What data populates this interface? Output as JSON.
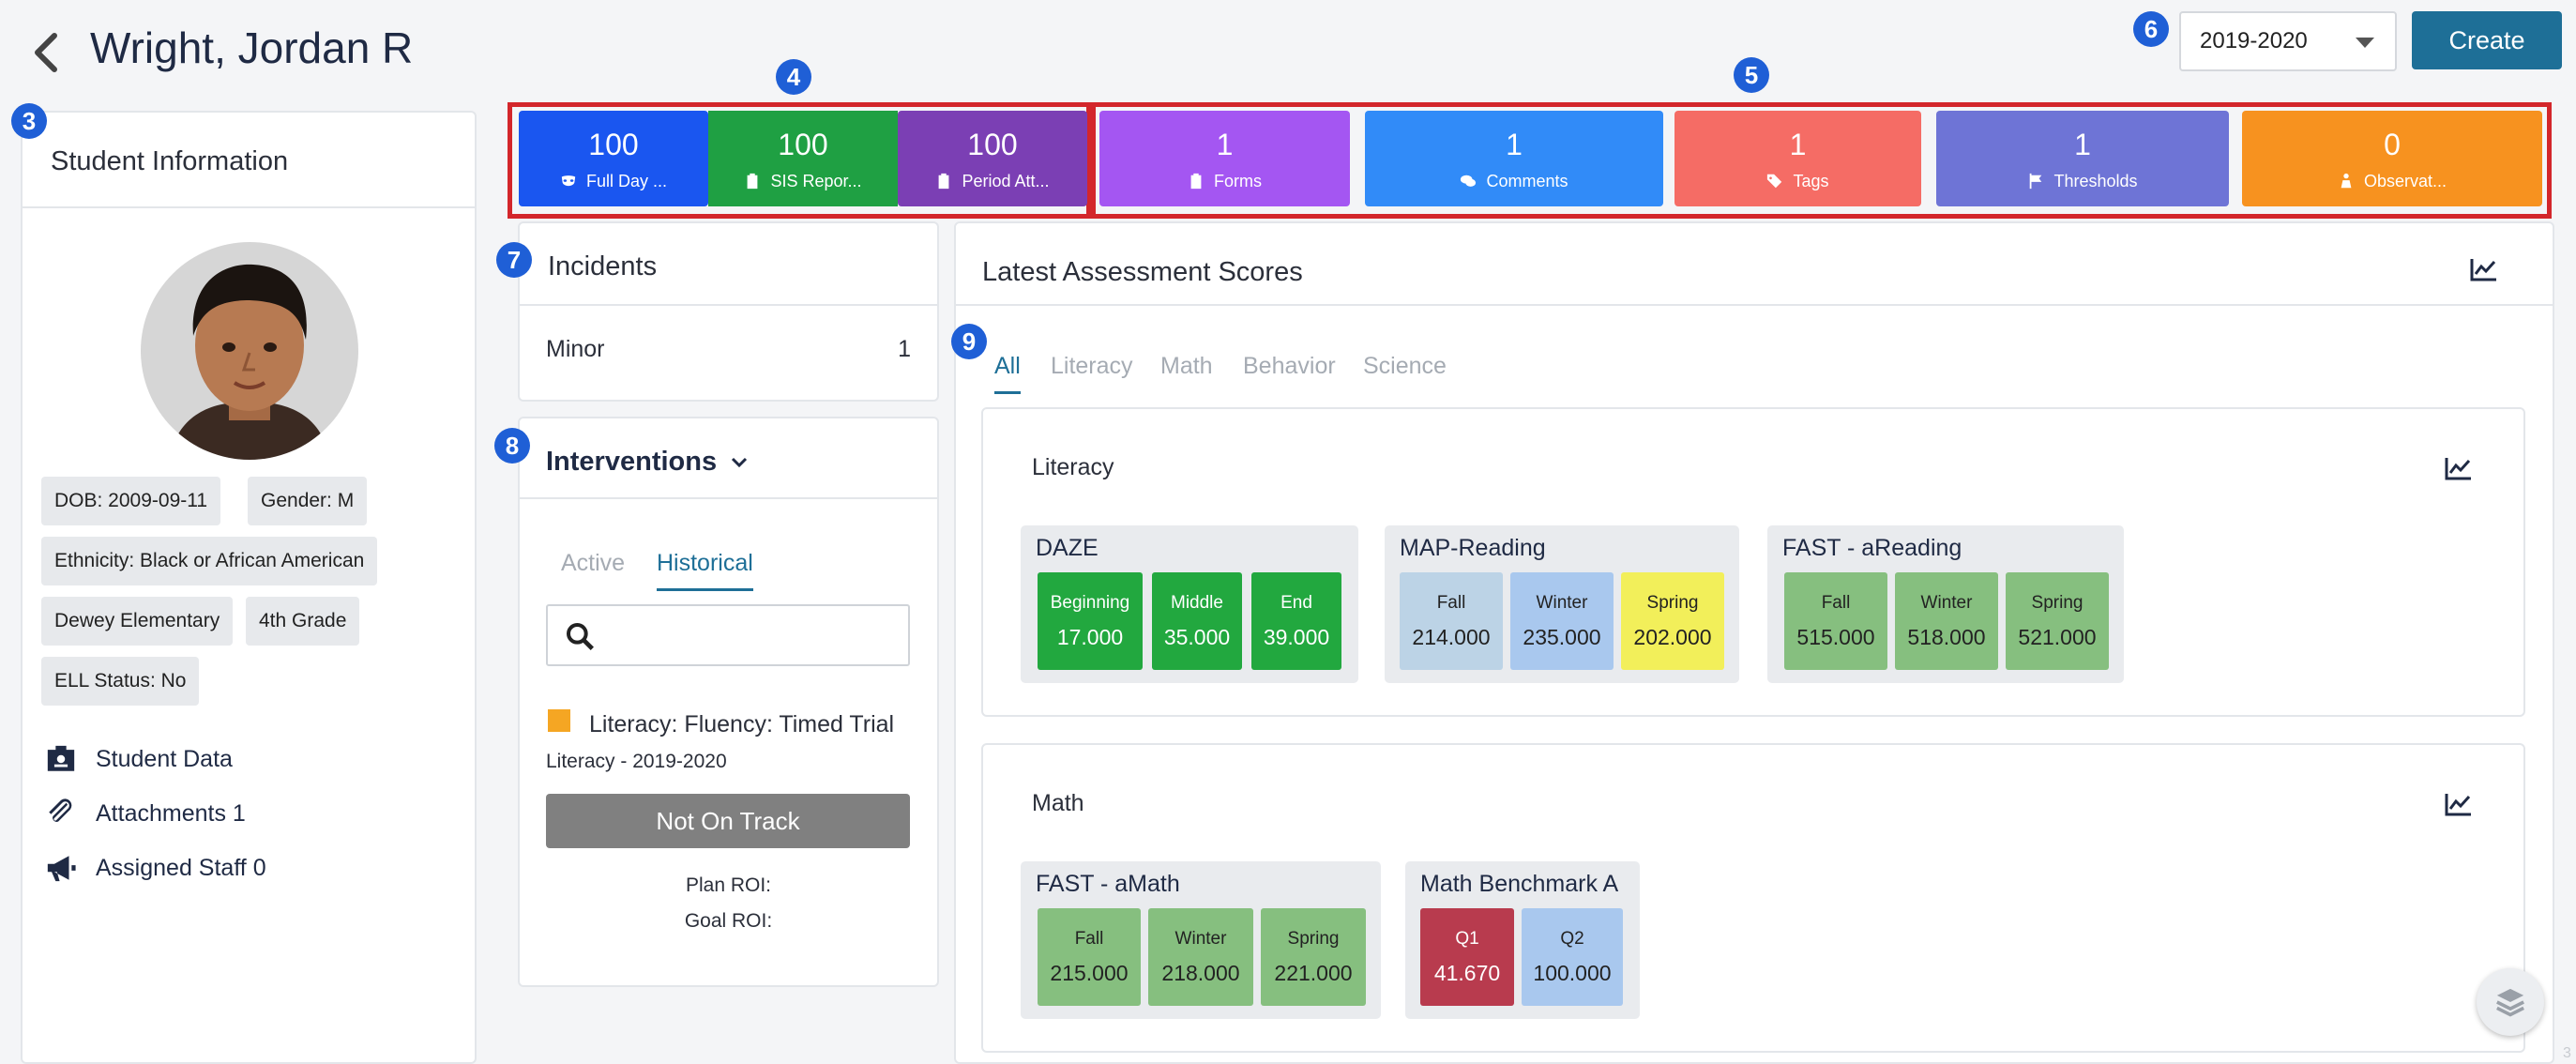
{
  "header": {
    "title": "Wright, Jordan R",
    "year": "2019-2020",
    "create_label": "Create"
  },
  "callouts": [
    "3",
    "4",
    "5",
    "6",
    "7",
    "8",
    "9"
  ],
  "metrics_attendance": [
    {
      "value": "100",
      "label": "Full Day ...",
      "icon": "mask-icon",
      "color": "#1a56f0"
    },
    {
      "value": "100",
      "label": "SIS Repor...",
      "icon": "clipboard-icon",
      "color": "#1fa043"
    },
    {
      "value": "100",
      "label": "Period Att...",
      "icon": "clipboard-icon",
      "color": "#7b3fb4"
    }
  ],
  "metrics_other": [
    {
      "value": "1",
      "label": "Forms",
      "icon": "clipboard-icon",
      "color": "#a456f2"
    },
    {
      "value": "1",
      "label": "Comments",
      "icon": "comments-icon",
      "color": "#318bf8"
    },
    {
      "value": "1",
      "label": "Tags",
      "icon": "tags-icon",
      "color": "#f56c65"
    },
    {
      "value": "1",
      "label": "Thresholds",
      "icon": "flag-icon",
      "color": "#6e74d6"
    },
    {
      "value": "0",
      "label": "Observat...",
      "icon": "person-icon",
      "color": "#f7921f"
    }
  ],
  "student": {
    "heading": "Student Information",
    "tags": [
      "DOB: 2009-09-11",
      "Gender: M",
      "Ethnicity: Black or African American",
      "Dewey Elementary",
      "4th Grade",
      "ELL Status: No"
    ],
    "links": [
      "Student Data",
      "Attachments 1",
      "Assigned Staff 0"
    ]
  },
  "incidents": {
    "heading": "Incidents",
    "rows": [
      {
        "label": "Minor",
        "count": "1"
      }
    ]
  },
  "interventions": {
    "heading": "Interventions",
    "tabs": [
      "Active",
      "Historical"
    ],
    "search_placeholder": "",
    "item": {
      "title": "Literacy: Fluency: Timed Trial",
      "subtitle": "Literacy - 2019-2020",
      "status": "Not On Track",
      "plan_roi": "Plan ROI:",
      "goal_roi": "Goal ROI:",
      "marker_color": "#f5a623"
    }
  },
  "assessment": {
    "heading": "Latest Assessment Scores",
    "tabs": [
      "All",
      "Literacy",
      "Math",
      "Behavior",
      "Science"
    ],
    "literacy": {
      "title": "Literacy",
      "groups": [
        {
          "name": "DAZE",
          "cells": [
            {
              "label": "Beginning",
              "value": "17.000",
              "color": "#22a83f"
            },
            {
              "label": "Middle",
              "value": "35.000",
              "color": "#22a83f"
            },
            {
              "label": "End",
              "value": "39.000",
              "color": "#22a83f"
            }
          ]
        },
        {
          "name": "MAP-Reading",
          "cells": [
            {
              "label": "Fall",
              "value": "214.000",
              "color": "#bcd3e6"
            },
            {
              "label": "Winter",
              "value": "235.000",
              "color": "#a9c8ee"
            },
            {
              "label": "Spring",
              "value": "202.000",
              "color": "#f2ef5a"
            }
          ]
        },
        {
          "name": "FAST - aReading",
          "cells": [
            {
              "label": "Fall",
              "value": "515.000",
              "color": "#86bf7f"
            },
            {
              "label": "Winter",
              "value": "518.000",
              "color": "#86bf7f"
            },
            {
              "label": "Spring",
              "value": "521.000",
              "color": "#86bf7f"
            }
          ]
        }
      ]
    },
    "math": {
      "title": "Math",
      "groups": [
        {
          "name": "FAST - aMath",
          "cells": [
            {
              "label": "Fall",
              "value": "215.000",
              "color": "#86bf7f"
            },
            {
              "label": "Winter",
              "value": "218.000",
              "color": "#86bf7f"
            },
            {
              "label": "Spring",
              "value": "221.000",
              "color": "#86bf7f"
            }
          ]
        },
        {
          "name": "Math Benchmark A",
          "cells": [
            {
              "label": "Q1",
              "value": "41.670",
              "color": "#b83b4e"
            },
            {
              "label": "Q2",
              "value": "100.000",
              "color": "#a9c8ee"
            }
          ]
        }
      ]
    }
  },
  "footer_page": "3"
}
